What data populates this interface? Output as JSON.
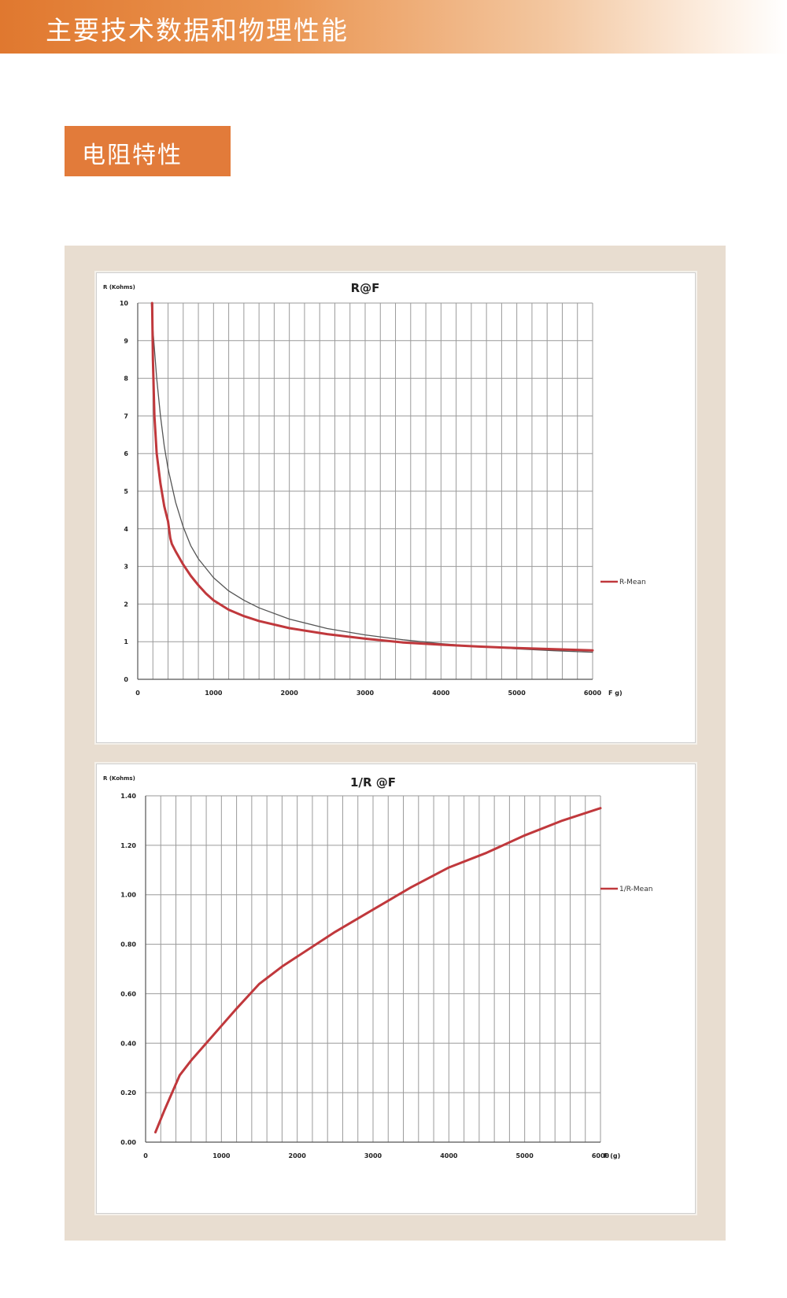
{
  "header": {
    "title": "主要技术数据和物理性能"
  },
  "section": {
    "label": "电阻特性"
  },
  "colors": {
    "accent": "#e27b3a",
    "panel": "#e8ddd0",
    "series": "#c0383c",
    "reference": "#555555"
  },
  "chart_data": [
    {
      "type": "line",
      "title": "R@F",
      "ylabel": "R (Kohms)",
      "xlabel": "F g)",
      "xlim": [
        0,
        6000
      ],
      "ylim": [
        0,
        10
      ],
      "xticks": [
        0,
        1000,
        2000,
        3000,
        4000,
        5000,
        6000
      ],
      "xtick_labels": [
        "0",
        "1000",
        "2000",
        "3000",
        "4000",
        "5000",
        "6000"
      ],
      "yticks": [
        0,
        1,
        2,
        3,
        4,
        5,
        6,
        7,
        8,
        9,
        10
      ],
      "ytick_labels": [
        "0",
        "1",
        "2",
        "3",
        "4",
        "5",
        "6",
        "7",
        "8",
        "9",
        "10"
      ],
      "legend": "right",
      "series": [
        {
          "name": "R-Mean",
          "legend": true,
          "color": "#c0383c",
          "x": [
            190,
            200,
            220,
            250,
            300,
            350,
            400,
            430,
            450,
            500,
            600,
            700,
            800,
            900,
            1000,
            1200,
            1400,
            1600,
            2000,
            2500,
            3000,
            3500,
            4000,
            4500,
            5000,
            5500,
            6000
          ],
          "y": [
            10,
            8.5,
            7.0,
            6.0,
            5.2,
            4.6,
            4.2,
            3.75,
            3.6,
            3.4,
            3.05,
            2.75,
            2.5,
            2.28,
            2.1,
            1.85,
            1.68,
            1.55,
            1.36,
            1.2,
            1.08,
            0.98,
            0.92,
            0.87,
            0.83,
            0.8,
            0.77
          ]
        },
        {
          "name": "Reference",
          "legend": false,
          "color": "#555555",
          "x": [
            180,
            200,
            250,
            300,
            350,
            400,
            500,
            600,
            700,
            800,
            1000,
            1200,
            1400,
            1600,
            2000,
            2500,
            3000,
            3500,
            4000,
            4500,
            5000,
            5500,
            6000
          ],
          "y": [
            10,
            9.3,
            8.0,
            7.0,
            6.2,
            5.6,
            4.7,
            4.05,
            3.55,
            3.2,
            2.7,
            2.35,
            2.1,
            1.9,
            1.6,
            1.35,
            1.18,
            1.05,
            0.95,
            0.87,
            0.81,
            0.76,
            0.72
          ]
        }
      ]
    },
    {
      "type": "line",
      "title": "1/R @F",
      "ylabel": "R (Kohms)",
      "xlabel": "F (g)",
      "xlim": [
        0,
        6000
      ],
      "ylim": [
        0,
        1.4
      ],
      "xticks": [
        0,
        1000,
        2000,
        3000,
        4000,
        5000,
        6000
      ],
      "xtick_labels": [
        "0",
        "1000",
        "2000",
        "3000",
        "4000",
        "5000",
        "6000"
      ],
      "yticks": [
        0,
        0.2,
        0.4,
        0.6,
        0.8,
        1.0,
        1.2,
        1.4
      ],
      "ytick_labels": [
        "0.00",
        "0.20",
        "0.40",
        "0.60",
        "0.80",
        "1.00",
        "1.20",
        "1.40"
      ],
      "legend": "right",
      "series": [
        {
          "name": "1/R-Mean",
          "legend": true,
          "color": "#c0383c",
          "x": [
            130,
            250,
            450,
            600,
            800,
            1000,
            1200,
            1500,
            1800,
            2000,
            2500,
            3000,
            3500,
            4000,
            4500,
            5000,
            5500,
            6000
          ],
          "y": [
            0.04,
            0.13,
            0.27,
            0.33,
            0.4,
            0.47,
            0.54,
            0.64,
            0.71,
            0.75,
            0.85,
            0.94,
            1.03,
            1.11,
            1.17,
            1.24,
            1.3,
            1.35
          ]
        }
      ]
    }
  ]
}
